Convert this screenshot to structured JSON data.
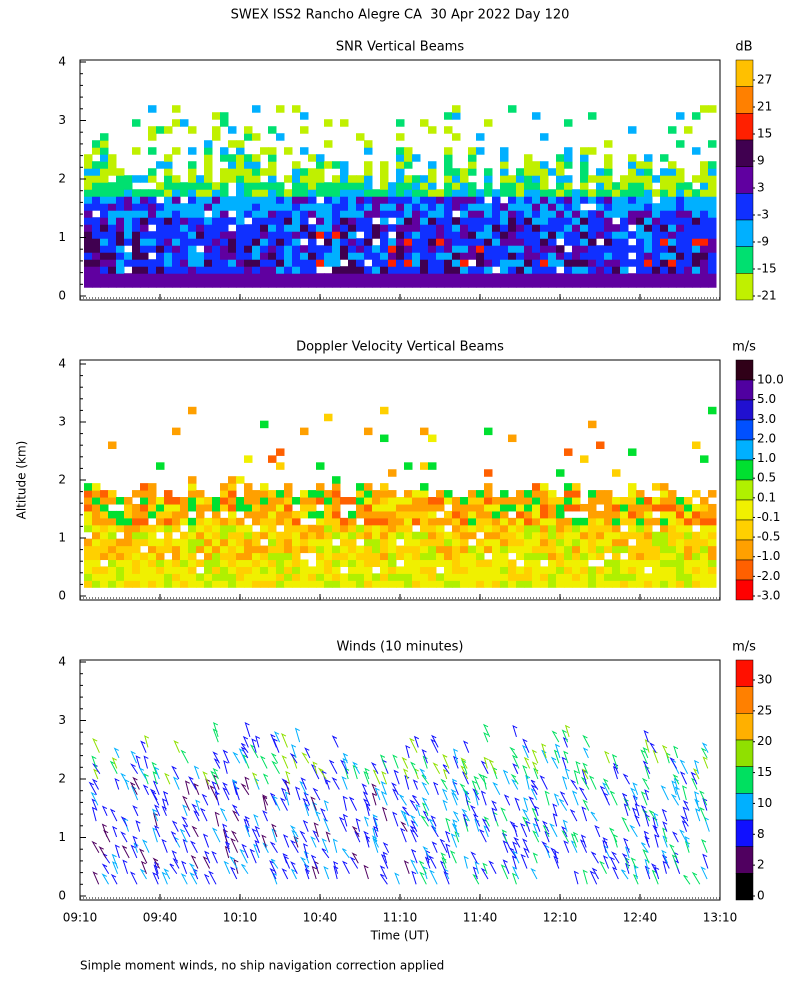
{
  "title": "SWEX ISS2 Rancho Alegre CA  30 Apr 2022 Day 120",
  "ylabel": "Altitude (km)",
  "footnote": "Simple moment winds, no ship navigation correction applied",
  "chart_data": [
    {
      "type": "heatmap",
      "title": "SNR Vertical Beams",
      "ylim": [
        0,
        4
      ],
      "yticks": [
        0,
        1,
        2,
        3,
        4
      ],
      "colorbar": {
        "unit": "dB",
        "ticks": [
          27,
          21,
          15,
          9,
          3,
          -3,
          -9,
          -15,
          -21
        ],
        "colors": [
          "#ffc000",
          "#ff8000",
          "#ff2000",
          "#400050",
          "#6000a0",
          "#1030ff",
          "#00b0ff",
          "#00e070",
          "#c0f000"
        ]
      }
    },
    {
      "type": "heatmap",
      "title": "Doppler Velocity Vertical Beams",
      "ylim": [
        0,
        4
      ],
      "yticks": [
        0,
        1,
        2,
        3,
        4
      ],
      "colorbar": {
        "unit": "m/s",
        "ticks": [
          {
            "value": 10,
            "label": "10.0"
          },
          {
            "value": 5,
            "label": "5.0"
          },
          {
            "value": 3,
            "label": "3.0"
          },
          {
            "value": 2,
            "label": "2.0"
          },
          {
            "value": 1,
            "label": "1.0"
          },
          0.5,
          0.1,
          -0.1,
          -0.5,
          {
            "value": -1,
            "label": "-1.0"
          },
          {
            "value": -2,
            "label": "-2.0"
          },
          {
            "value": -3,
            "label": "-3.0"
          }
        ],
        "colors": [
          "#300018",
          "#5000a0",
          "#2010d0",
          "#0050ff",
          "#00b0ff",
          "#00e030",
          "#b0f000",
          "#f0f000",
          "#ffd000",
          "#ffa000",
          "#ff6000",
          "#ff0000"
        ]
      }
    },
    {
      "type": "wind-barbs",
      "title": "Winds (10 minutes)",
      "ylim": [
        0,
        4
      ],
      "yticks": [
        0,
        1,
        2,
        3,
        4
      ],
      "xlabel": "Time (UT)",
      "xticks": [
        "09:10",
        "09:40",
        "10:10",
        "10:40",
        "11:10",
        "11:40",
        "12:10",
        "12:40",
        "13:10"
      ],
      "colorbar": {
        "unit": "m/s",
        "ticks": [
          30,
          25,
          20,
          15,
          10,
          8,
          2,
          0
        ],
        "colors": [
          "#ff1000",
          "#ff8000",
          "#ffb000",
          "#90e000",
          "#00e060",
          "#00b0ff",
          "#1010ff",
          "#500060",
          "#000000"
        ]
      }
    }
  ]
}
